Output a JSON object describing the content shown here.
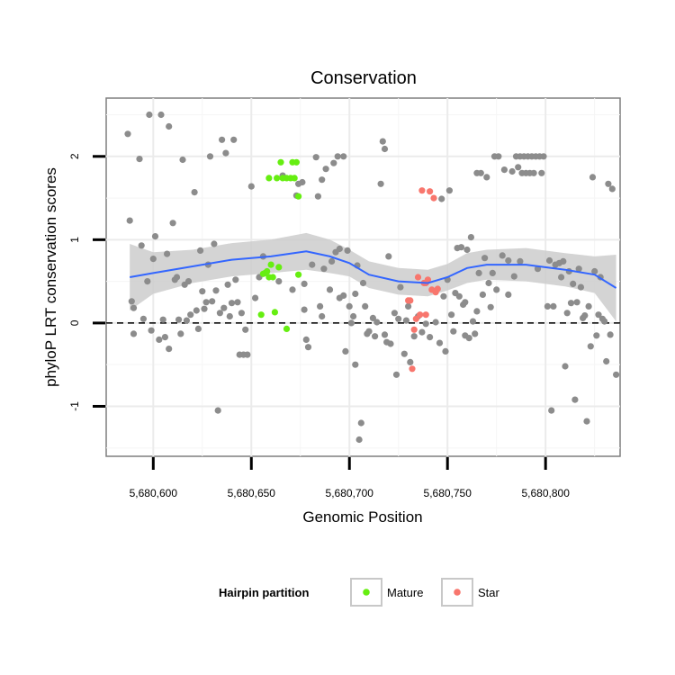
{
  "chart_data": {
    "type": "scatter",
    "title": "Conservation",
    "xlabel": "Genomic Position",
    "ylabel": "phyloP LRT conservation scores",
    "xlim": [
      5680576,
      5680838
    ],
    "ylim": [
      -1.6,
      2.7
    ],
    "x_ticks": [
      5680600,
      5680650,
      5680700,
      5680750,
      5680800
    ],
    "x_tick_labels": [
      "5,680,600",
      "5,680,650",
      "5,680,700",
      "5,680,750",
      "5,680,800"
    ],
    "y_ticks": [
      -1,
      0,
      1,
      2
    ],
    "y_tick_labels": [
      "-1",
      "0",
      "1",
      "2"
    ],
    "grid": true,
    "reference_line": {
      "y": 0,
      "style": "dashed"
    },
    "legend": {
      "title": "Hairpin partition",
      "position": "bottom",
      "entries": [
        {
          "label": "Mature",
          "color": "#66ee11"
        },
        {
          "label": "Star",
          "color": "#f8766d"
        }
      ]
    },
    "colors": {
      "other": "#8c8c8c",
      "mature": "#66ee11",
      "star": "#f8766d",
      "smooth": "#3366ff",
      "band": "#cccccc"
    },
    "smooth": {
      "x": [
        5680588,
        5680600,
        5680620,
        5680640,
        5680660,
        5680678,
        5680690,
        5680700,
        5680710,
        5680725,
        5680740,
        5680750,
        5680760,
        5680770,
        5680790,
        5680810,
        5680825,
        5680836
      ],
      "y": [
        0.55,
        0.6,
        0.68,
        0.76,
        0.8,
        0.86,
        0.8,
        0.72,
        0.58,
        0.5,
        0.48,
        0.55,
        0.66,
        0.7,
        0.7,
        0.64,
        0.58,
        0.42
      ],
      "upper": [
        0.95,
        0.85,
        0.88,
        0.96,
        1.0,
        1.08,
        1.0,
        0.88,
        0.74,
        0.66,
        0.64,
        0.71,
        0.84,
        0.88,
        0.9,
        0.84,
        0.8,
        0.82
      ],
      "lower": [
        0.15,
        0.35,
        0.48,
        0.56,
        0.6,
        0.64,
        0.6,
        0.56,
        0.42,
        0.34,
        0.32,
        0.39,
        0.48,
        0.52,
        0.5,
        0.44,
        0.36,
        0.02
      ]
    },
    "series": [
      {
        "name": "",
        "group": "other",
        "points": [
          [
            5680587,
            2.27
          ],
          [
            5680588,
            1.23
          ],
          [
            5680589,
            0.26
          ],
          [
            5680590,
            0.18
          ],
          [
            5680590,
            -0.13
          ],
          [
            5680593,
            1.97
          ],
          [
            5680594,
            0.93
          ],
          [
            5680595,
            0.05
          ],
          [
            5680597,
            0.5
          ],
          [
            5680598,
            2.5
          ],
          [
            5680599,
            -0.09
          ],
          [
            5680600,
            0.77
          ],
          [
            5680601,
            1.04
          ],
          [
            5680603,
            -0.2
          ],
          [
            5680604,
            2.5
          ],
          [
            5680605,
            0.04
          ],
          [
            5680606,
            -0.17
          ],
          [
            5680607,
            0.83
          ],
          [
            5680608,
            -0.31
          ],
          [
            5680608,
            2.36
          ],
          [
            5680610,
            1.2
          ],
          [
            5680611,
            0.52
          ],
          [
            5680612,
            0.55
          ],
          [
            5680613,
            0.04
          ],
          [
            5680614,
            -0.13
          ],
          [
            5680615,
            1.96
          ],
          [
            5680616,
            0.46
          ],
          [
            5680617,
            0.03
          ],
          [
            5680618,
            0.5
          ],
          [
            5680619,
            0.1
          ],
          [
            5680621,
            1.57
          ],
          [
            5680622,
            0.15
          ],
          [
            5680623,
            -0.07
          ],
          [
            5680624,
            0.87
          ],
          [
            5680625,
            0.38
          ],
          [
            5680626,
            0.17
          ],
          [
            5680627,
            0.25
          ],
          [
            5680628,
            0.7
          ],
          [
            5680629,
            2.0
          ],
          [
            5680630,
            0.26
          ],
          [
            5680631,
            0.95
          ],
          [
            5680632,
            0.39
          ],
          [
            5680633,
            -1.05
          ],
          [
            5680634,
            0.12
          ],
          [
            5680635,
            2.2
          ],
          [
            5680636,
            0.18
          ],
          [
            5680637,
            2.04
          ],
          [
            5680638,
            0.46
          ],
          [
            5680639,
            0.08
          ],
          [
            5680640,
            0.24
          ],
          [
            5680641,
            2.2
          ],
          [
            5680642,
            0.52
          ],
          [
            5680643,
            0.25
          ],
          [
            5680644,
            -0.38
          ],
          [
            5680645,
            0.12
          ],
          [
            5680646,
            -0.38
          ],
          [
            5680647,
            -0.08
          ],
          [
            5680648,
            -0.38
          ],
          [
            5680650,
            1.64
          ],
          [
            5680652,
            0.3
          ],
          [
            5680654,
            0.55
          ],
          [
            5680656,
            0.8
          ],
          [
            5680664,
            0.5
          ],
          [
            5680666,
            1.77
          ],
          [
            5680671,
            0.4
          ],
          [
            5680673,
            1.53
          ],
          [
            5680674,
            1.67
          ],
          [
            5680676,
            1.69
          ],
          [
            5680677,
            0.16
          ],
          [
            5680677,
            0.47
          ],
          [
            5680678,
            -0.2
          ],
          [
            5680679,
            -0.29
          ],
          [
            5680681,
            0.7
          ],
          [
            5680683,
            1.99
          ],
          [
            5680684,
            1.52
          ],
          [
            5680685,
            0.2
          ],
          [
            5680686,
            0.08
          ],
          [
            5680686,
            1.72
          ],
          [
            5680687,
            0.65
          ],
          [
            5680688,
            1.85
          ],
          [
            5680690,
            0.4
          ],
          [
            5680691,
            0.74
          ],
          [
            5680692,
            1.92
          ],
          [
            5680693,
            0.85
          ],
          [
            5680694,
            2.0
          ],
          [
            5680695,
            0.3
          ],
          [
            5680695,
            0.89
          ],
          [
            5680697,
            2.0
          ],
          [
            5680697,
            0.33
          ],
          [
            5680698,
            -0.34
          ],
          [
            5680699,
            0.87
          ],
          [
            5680700,
            0.2
          ],
          [
            5680701,
            0.0
          ],
          [
            5680702,
            0.08
          ],
          [
            5680703,
            -0.5
          ],
          [
            5680703,
            0.35
          ],
          [
            5680704,
            0.69
          ],
          [
            5680705,
            -1.4
          ],
          [
            5680706,
            -1.2
          ],
          [
            5680707,
            0.48
          ],
          [
            5680708,
            0.2
          ],
          [
            5680709,
            -0.13
          ],
          [
            5680710,
            -0.1
          ],
          [
            5680712,
            0.06
          ],
          [
            5680713,
            -0.16
          ],
          [
            5680714,
            0.01
          ],
          [
            5680716,
            1.67
          ],
          [
            5680717,
            2.18
          ],
          [
            5680718,
            -0.14
          ],
          [
            5680718,
            2.09
          ],
          [
            5680719,
            -0.23
          ],
          [
            5680720,
            0.8
          ],
          [
            5680721,
            -0.25
          ],
          [
            5680723,
            0.12
          ],
          [
            5680724,
            -0.62
          ],
          [
            5680725,
            0.05
          ],
          [
            5680726,
            0.43
          ],
          [
            5680728,
            -0.37
          ],
          [
            5680729,
            0.03
          ],
          [
            5680730,
            0.2
          ],
          [
            5680731,
            -0.47
          ],
          [
            5680733,
            -0.16
          ],
          [
            5680735,
            0.08
          ],
          [
            5680737,
            -0.11
          ],
          [
            5680739,
            -0.01
          ],
          [
            5680741,
            -0.17
          ],
          [
            5680744,
            0.01
          ],
          [
            5680746,
            -0.24
          ],
          [
            5680747,
            1.49
          ],
          [
            5680748,
            0.32
          ],
          [
            5680749,
            -0.34
          ],
          [
            5680750,
            0.52
          ],
          [
            5680751,
            1.59
          ],
          [
            5680752,
            0.1
          ],
          [
            5680753,
            -0.1
          ],
          [
            5680754,
            0.36
          ],
          [
            5680755,
            0.9
          ],
          [
            5680756,
            0.32
          ],
          [
            5680757,
            0.91
          ],
          [
            5680758,
            0.22
          ],
          [
            5680759,
            -0.15
          ],
          [
            5680759,
            0.25
          ],
          [
            5680760,
            0.88
          ],
          [
            5680761,
            -0.18
          ],
          [
            5680762,
            1.03
          ],
          [
            5680763,
            0.02
          ],
          [
            5680764,
            -0.13
          ],
          [
            5680765,
            0.14
          ],
          [
            5680765,
            1.8
          ],
          [
            5680766,
            0.6
          ],
          [
            5680767,
            1.8
          ],
          [
            5680768,
            0.34
          ],
          [
            5680769,
            0.78
          ],
          [
            5680770,
            1.75
          ],
          [
            5680771,
            0.48
          ],
          [
            5680772,
            0.19
          ],
          [
            5680773,
            0.6
          ],
          [
            5680774,
            2.0
          ],
          [
            5680775,
            0.4
          ],
          [
            5680776,
            2.0
          ],
          [
            5680778,
            0.81
          ],
          [
            5680779,
            1.84
          ],
          [
            5680781,
            0.34
          ],
          [
            5680781,
            0.75
          ],
          [
            5680783,
            1.82
          ],
          [
            5680784,
            0.56
          ],
          [
            5680785,
            2.0
          ],
          [
            5680786,
            1.87
          ],
          [
            5680787,
            2.0
          ],
          [
            5680787,
            0.74
          ],
          [
            5680788,
            1.8
          ],
          [
            5680789,
            2.0
          ],
          [
            5680790,
            1.8
          ],
          [
            5680791,
            2.0
          ],
          [
            5680792,
            1.8
          ],
          [
            5680793,
            2.0
          ],
          [
            5680794,
            1.8
          ],
          [
            5680795,
            2.0
          ],
          [
            5680796,
            0.65
          ],
          [
            5680797,
            2.0
          ],
          [
            5680798,
            1.8
          ],
          [
            5680799,
            2.0
          ],
          [
            5680801,
            0.2
          ],
          [
            5680802,
            0.75
          ],
          [
            5680803,
            -1.05
          ],
          [
            5680804,
            0.2
          ],
          [
            5680805,
            0.7
          ],
          [
            5680807,
            0.72
          ],
          [
            5680808,
            0.55
          ],
          [
            5680809,
            0.74
          ],
          [
            5680810,
            -0.52
          ],
          [
            5680811,
            0.12
          ],
          [
            5680812,
            0.62
          ],
          [
            5680813,
            0.24
          ],
          [
            5680814,
            0.47
          ],
          [
            5680815,
            -0.92
          ],
          [
            5680816,
            0.25
          ],
          [
            5680817,
            0.65
          ],
          [
            5680818,
            0.43
          ],
          [
            5680819,
            0.06
          ],
          [
            5680820,
            0.09
          ],
          [
            5680821,
            -1.18
          ],
          [
            5680822,
            0.2
          ],
          [
            5680823,
            -0.28
          ],
          [
            5680824,
            1.75
          ],
          [
            5680825,
            0.62
          ],
          [
            5680826,
            -0.15
          ],
          [
            5680827,
            0.1
          ],
          [
            5680828,
            0.55
          ],
          [
            5680829,
            0.05
          ],
          [
            5680830,
            0.02
          ],
          [
            5680831,
            -0.46
          ],
          [
            5680832,
            1.67
          ],
          [
            5680833,
            -0.14
          ],
          [
            5680834,
            1.61
          ],
          [
            5680836,
            -0.62
          ]
        ]
      },
      {
        "name": "Mature",
        "group": "mature",
        "points": [
          [
            5680655,
            0.1
          ],
          [
            5680656,
            0.59
          ],
          [
            5680657,
            0.6
          ],
          [
            5680658,
            0.62
          ],
          [
            5680659,
            1.74
          ],
          [
            5680660,
            0.7
          ],
          [
            5680661,
            0.55
          ],
          [
            5680662,
            0.13
          ],
          [
            5680663,
            1.74
          ],
          [
            5680664,
            0.67
          ],
          [
            5680665,
            1.93
          ],
          [
            5680666,
            1.74
          ],
          [
            5680668,
            1.74
          ],
          [
            5680668,
            -0.07
          ],
          [
            5680670,
            1.74
          ],
          [
            5680671,
            1.93
          ],
          [
            5680672,
            1.74
          ],
          [
            5680673,
            1.93
          ],
          [
            5680674,
            0.58
          ],
          [
            5680674,
            1.52
          ],
          [
            5680659,
            0.55
          ]
        ]
      },
      {
        "name": "Star",
        "group": "star",
        "points": [
          [
            5680731,
            0.27
          ],
          [
            5680732,
            -0.55
          ],
          [
            5680733,
            -0.08
          ],
          [
            5680734,
            0.05
          ],
          [
            5680735,
            0.55
          ],
          [
            5680736,
            0.1
          ],
          [
            5680737,
            1.59
          ],
          [
            5680738,
            0.48
          ],
          [
            5680739,
            0.1
          ],
          [
            5680740,
            0.52
          ],
          [
            5680741,
            1.58
          ],
          [
            5680742,
            0.4
          ],
          [
            5680743,
            1.5
          ],
          [
            5680744,
            0.37
          ],
          [
            5680745,
            0.41
          ],
          [
            5680730,
            0.27
          ],
          [
            5680739,
            0.48
          ]
        ]
      }
    ]
  }
}
